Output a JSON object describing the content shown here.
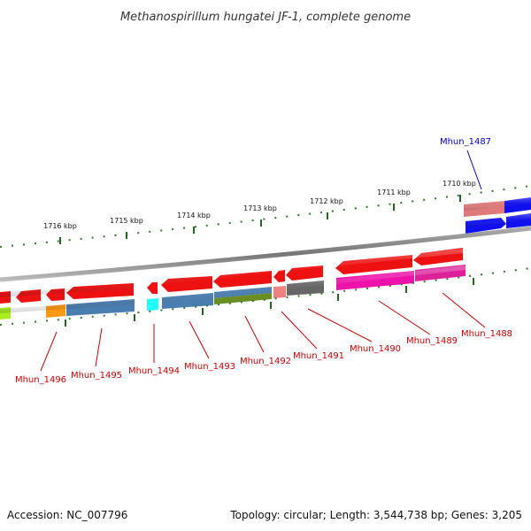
{
  "header": {
    "title": "Methanospirillum hungatei JF-1, complete genome"
  },
  "footer": {
    "accession": "Accession: NC_007796",
    "topology": "Topology: circular; Length: 3,544,738 bp; Genes: 3,205"
  },
  "scale": {
    "tick_labels": [
      "1710 kbp",
      "1711 kbp",
      "1712 kbp",
      "1713 kbp",
      "1714 kbp",
      "1715 kbp",
      "1716 kbp"
    ]
  },
  "colors": {
    "forward_strand": "#0000ee",
    "reverse_strand": "#ee0000",
    "backbone": "#888888",
    "tick": "#226622",
    "label_forward": "#0000cc",
    "label_reverse": "#cc0000"
  },
  "genes": {
    "forward": [
      {
        "label": "Mhun_1487",
        "strand": "forward"
      }
    ],
    "reverse": [
      {
        "label": "Mhun_1488",
        "strand": "reverse"
      },
      {
        "label": "Mhun_1489",
        "strand": "reverse"
      },
      {
        "label": "Mhun_1490",
        "strand": "reverse"
      },
      {
        "label": "Mhun_1491",
        "strand": "reverse"
      },
      {
        "label": "Mhun_1492",
        "strand": "reverse"
      },
      {
        "label": "Mhun_1493",
        "strand": "reverse"
      },
      {
        "label": "Mhun_1494",
        "strand": "reverse"
      },
      {
        "label": "Mhun_1495",
        "strand": "reverse"
      },
      {
        "label": "Mhun_1496",
        "strand": "reverse"
      }
    ]
  }
}
